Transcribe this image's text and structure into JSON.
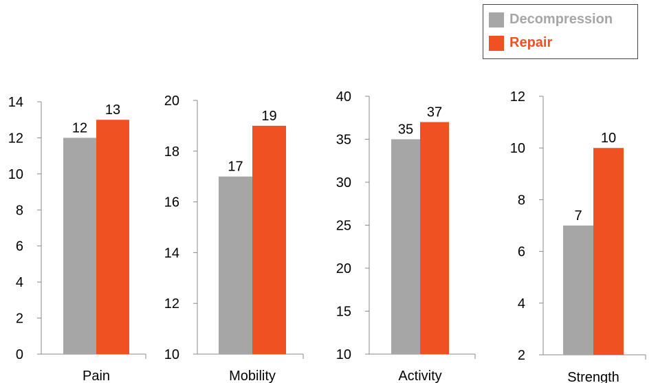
{
  "legend": {
    "position": "top-right",
    "items": [
      {
        "label": "Decompression",
        "color": "#a6a6a6",
        "text_color": "#a6a6a6"
      },
      {
        "label": "Repair",
        "color": "#f05123",
        "text_color": "#f05123"
      }
    ]
  },
  "chart_data": [
    {
      "type": "bar",
      "categories": [
        "Pain"
      ],
      "series": [
        {
          "name": "Decompression",
          "values": [
            12
          ]
        },
        {
          "name": "Repair",
          "values": [
            13
          ]
        }
      ],
      "ylim": [
        0,
        14
      ],
      "yticks": [
        "0",
        "2",
        "4",
        "6",
        "8",
        "10",
        "12",
        "14"
      ],
      "data_labels": [
        "12",
        "13"
      ],
      "grid": false
    },
    {
      "type": "bar",
      "categories": [
        "Mobility"
      ],
      "series": [
        {
          "name": "Decompression",
          "values": [
            17
          ]
        },
        {
          "name": "Repair",
          "values": [
            19
          ]
        }
      ],
      "ylim": [
        10,
        20
      ],
      "yticks": [
        "10",
        "12",
        "14",
        "16",
        "18",
        "20"
      ],
      "data_labels": [
        "17",
        "19"
      ],
      "grid": false
    },
    {
      "type": "bar",
      "categories": [
        "Activity"
      ],
      "series": [
        {
          "name": "Decompression",
          "values": [
            35
          ]
        },
        {
          "name": "Repair",
          "values": [
            37
          ]
        }
      ],
      "ylim": [
        10,
        40
      ],
      "yticks": [
        "10",
        "15",
        "20",
        "25",
        "30",
        "35",
        "40"
      ],
      "data_labels": [
        "35",
        "37"
      ],
      "grid": false
    },
    {
      "type": "bar",
      "categories": [
        "Strength"
      ],
      "series": [
        {
          "name": "Decompression",
          "values": [
            7
          ]
        },
        {
          "name": "Repair",
          "values": [
            10
          ]
        }
      ],
      "ylim": [
        2,
        12
      ],
      "yticks": [
        "2",
        "4",
        "6",
        "8",
        "10",
        "12"
      ],
      "data_labels": [
        "7",
        "10"
      ],
      "grid": false
    }
  ]
}
